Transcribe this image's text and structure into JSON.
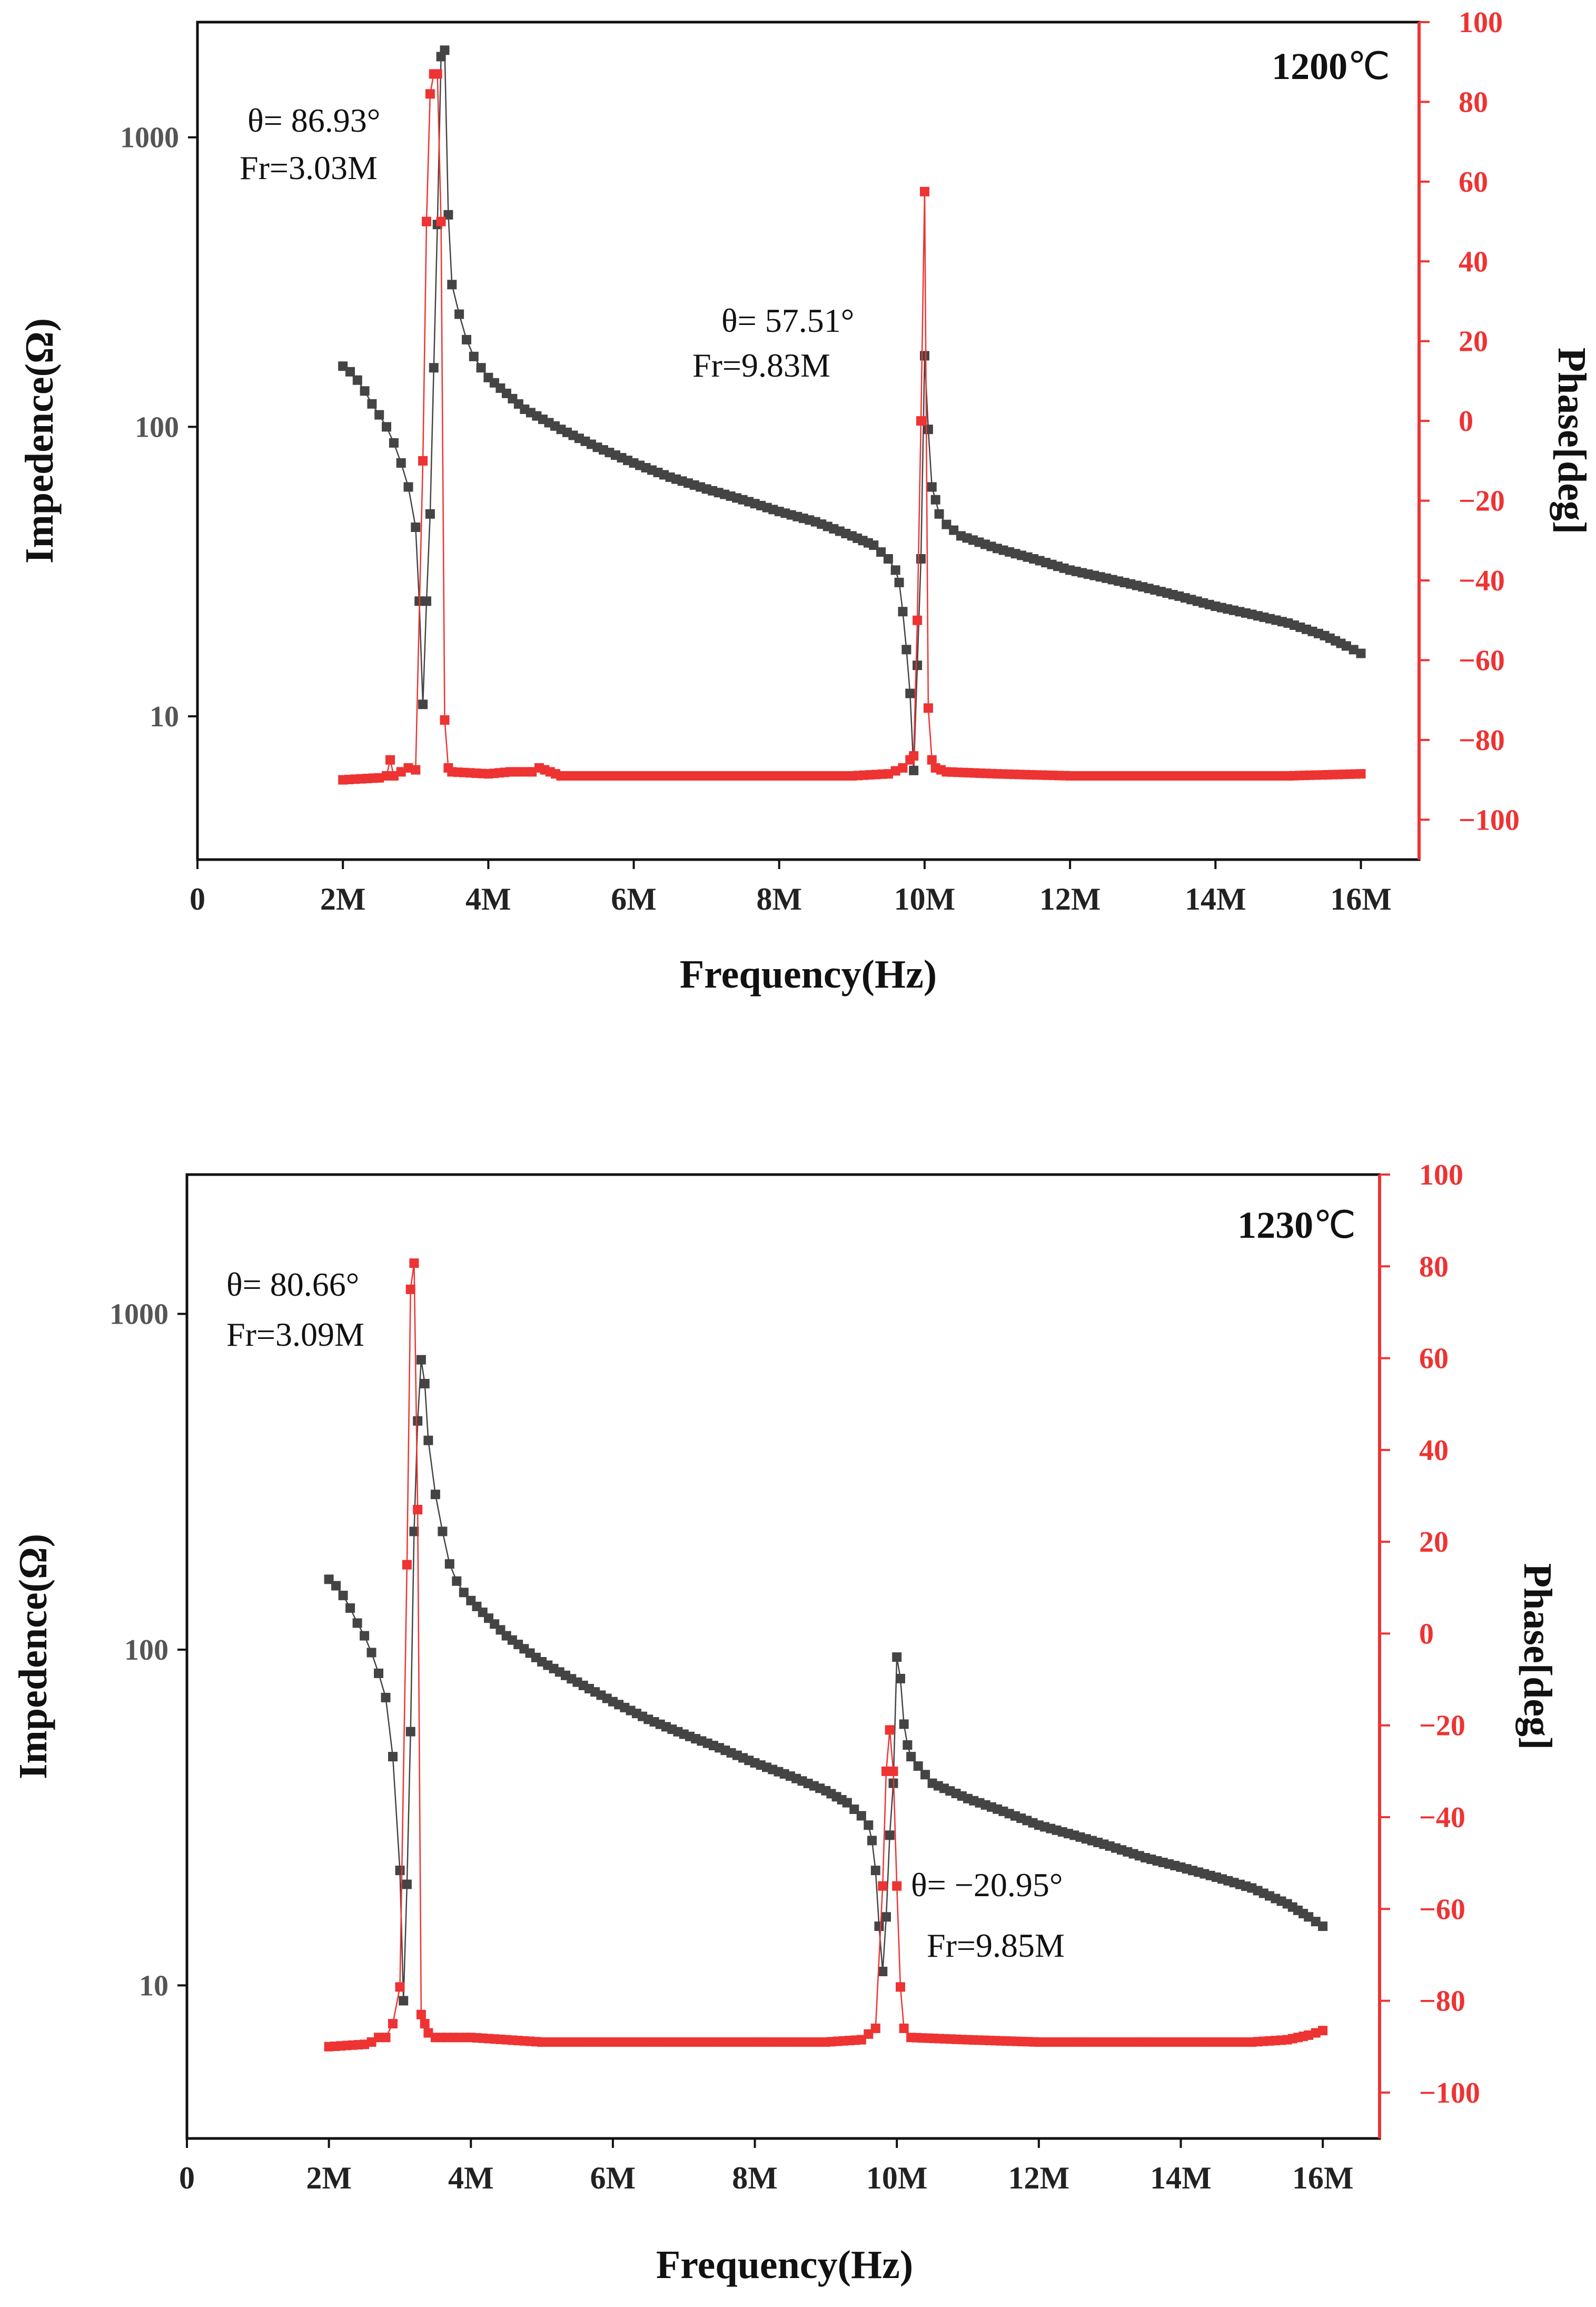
{
  "chart_data": [
    {
      "type": "scatter",
      "title": "1200℃",
      "title_number": "1200",
      "title_unit": "℃",
      "xlabel": "Frequency(Hz)",
      "ylabel_left": "Impedence(Ω)",
      "ylabel_right": "Phase[deg]",
      "y_left_scale": "log",
      "y_left_lim": [
        3.2,
        2500
      ],
      "y_left_ticks": [
        10,
        100,
        1000
      ],
      "y_left_tick_labels": [
        "10",
        "100",
        "1000"
      ],
      "y_right_lim": [
        -110,
        100
      ],
      "y_right_ticks": [
        -100,
        -80,
        -60,
        -40,
        -20,
        0,
        20,
        40,
        60,
        80,
        100
      ],
      "y_right_tick_labels": [
        "−100",
        "−80",
        "−60",
        "−40",
        "−20",
        "0",
        "20",
        "40",
        "60",
        "80",
        "100"
      ],
      "x_lim": [
        0,
        16.8
      ],
      "x_ticks": [
        0,
        2,
        4,
        6,
        8,
        10,
        12,
        14,
        16
      ],
      "x_tick_labels": [
        "0",
        "2M",
        "4M",
        "6M",
        "8M",
        "10M",
        "12M",
        "14M",
        "16M"
      ],
      "x_unit": "MHz",
      "series": [
        {
          "name": "Impedance",
          "axis": "left",
          "color": "#444444",
          "points": [
            [
              2.0,
              162
            ],
            [
              2.1,
              155
            ],
            [
              2.2,
              145
            ],
            [
              2.3,
              133
            ],
            [
              2.4,
              120
            ],
            [
              2.5,
              110
            ],
            [
              2.6,
              100
            ],
            [
              2.7,
              88
            ],
            [
              2.8,
              75
            ],
            [
              2.9,
              62
            ],
            [
              3.0,
              45
            ],
            [
              3.05,
              25
            ],
            [
              3.1,
              11
            ],
            [
              3.15,
              25
            ],
            [
              3.2,
              50
            ],
            [
              3.25,
              160
            ],
            [
              3.3,
              500
            ],
            [
              3.35,
              1900
            ],
            [
              3.4,
              2000
            ],
            [
              3.45,
              540
            ],
            [
              3.5,
              310
            ],
            [
              3.6,
              245
            ],
            [
              3.7,
              200
            ],
            [
              3.8,
              175
            ],
            [
              3.9,
              160
            ],
            [
              4.0,
              148
            ],
            [
              4.5,
              115
            ],
            [
              5,
              98
            ],
            [
              5.5,
              85
            ],
            [
              6,
              75
            ],
            [
              6.5,
              67
            ],
            [
              7,
              61
            ],
            [
              7.5,
              56
            ],
            [
              8,
              51
            ],
            [
              8.5,
              47
            ],
            [
              9,
              42
            ],
            [
              9.3,
              39
            ],
            [
              9.5,
              35
            ],
            [
              9.6,
              32
            ],
            [
              9.65,
              29
            ],
            [
              9.7,
              23
            ],
            [
              9.75,
              17
            ],
            [
              9.8,
              12
            ],
            [
              9.85,
              6.5
            ],
            [
              9.9,
              15
            ],
            [
              9.95,
              35
            ],
            [
              10.0,
              176
            ],
            [
              10.05,
              98
            ],
            [
              10.1,
              62
            ],
            [
              10.15,
              56
            ],
            [
              10.2,
              50
            ],
            [
              10.3,
              46
            ],
            [
              10.5,
              42
            ],
            [
              11,
              38
            ],
            [
              11.5,
              35
            ],
            [
              12,
              32
            ],
            [
              12.5,
              30
            ],
            [
              13,
              28
            ],
            [
              13.5,
              26
            ],
            [
              14,
              24
            ],
            [
              14.5,
              22.5
            ],
            [
              15,
              21
            ],
            [
              15.5,
              19
            ],
            [
              15.8,
              17.5
            ],
            [
              16.0,
              16.5
            ]
          ]
        },
        {
          "name": "Phase",
          "axis": "right",
          "color": "#ee3333",
          "points": [
            [
              2.0,
              -90
            ],
            [
              2.5,
              -89.5
            ],
            [
              2.6,
              -89
            ],
            [
              2.65,
              -85
            ],
            [
              2.7,
              -89
            ],
            [
              2.8,
              -88
            ],
            [
              2.9,
              -87
            ],
            [
              3.0,
              -87.5
            ],
            [
              3.1,
              -10
            ],
            [
              3.15,
              50
            ],
            [
              3.2,
              82
            ],
            [
              3.25,
              87
            ],
            [
              3.3,
              87
            ],
            [
              3.35,
              50
            ],
            [
              3.4,
              -75
            ],
            [
              3.45,
              -87
            ],
            [
              3.5,
              -88
            ],
            [
              4,
              -88.5
            ],
            [
              4.3,
              -88
            ],
            [
              4.6,
              -88
            ],
            [
              4.7,
              -87
            ],
            [
              5,
              -89
            ],
            [
              6,
              -89
            ],
            [
              7,
              -89
            ],
            [
              8,
              -89
            ],
            [
              9,
              -89
            ],
            [
              9.5,
              -88.5
            ],
            [
              9.7,
              -87
            ],
            [
              9.8,
              -85
            ],
            [
              9.85,
              -84
            ],
            [
              9.9,
              -50
            ],
            [
              9.95,
              0
            ],
            [
              10.0,
              57.5
            ],
            [
              10.05,
              -72
            ],
            [
              10.1,
              -85
            ],
            [
              10.15,
              -87
            ],
            [
              10.3,
              -88
            ],
            [
              11,
              -88.5
            ],
            [
              12,
              -89
            ],
            [
              13,
              -89
            ],
            [
              14,
              -89
            ],
            [
              15,
              -89
            ],
            [
              16,
              -88.5
            ]
          ]
        }
      ],
      "annotations": [
        {
          "theta": "θ= 86.93°",
          "fr": "Fr=3.03M"
        },
        {
          "theta": "θ= 57.51°",
          "fr": "Fr=9.83M"
        }
      ]
    },
    {
      "type": "scatter",
      "title": "1230℃",
      "title_number": "1230",
      "title_unit": "℃",
      "xlabel": "Frequency(Hz)",
      "ylabel_left": "Impedence(Ω)",
      "ylabel_right": "Phase[deg]",
      "y_left_scale": "log",
      "y_left_lim": [
        3.5,
        2600
      ],
      "y_left_ticks": [
        10,
        100,
        1000
      ],
      "y_left_tick_labels": [
        "10",
        "100",
        "1000"
      ],
      "y_right_lim": [
        -110,
        100
      ],
      "y_right_ticks": [
        -100,
        -80,
        -60,
        -40,
        -20,
        0,
        20,
        40,
        60,
        80,
        100
      ],
      "y_right_tick_labels": [
        "−100",
        "−80",
        "−60",
        "−40",
        "−20",
        "0",
        "20",
        "40",
        "60",
        "80",
        "100"
      ],
      "x_lim": [
        0,
        16.8
      ],
      "x_ticks": [
        0,
        2,
        4,
        6,
        8,
        10,
        12,
        14,
        16
      ],
      "x_tick_labels": [
        "0",
        "2M",
        "4M",
        "6M",
        "8M",
        "10M",
        "12M",
        "14M",
        "16M"
      ],
      "x_unit": "MHz",
      "series": [
        {
          "name": "Impedance",
          "axis": "left",
          "color": "#444444",
          "points": [
            [
              2.0,
              162
            ],
            [
              2.1,
              155
            ],
            [
              2.2,
              145
            ],
            [
              2.3,
              133
            ],
            [
              2.4,
              120
            ],
            [
              2.5,
              110
            ],
            [
              2.6,
              98
            ],
            [
              2.7,
              85
            ],
            [
              2.8,
              72
            ],
            [
              2.9,
              48
            ],
            [
              3.0,
              22
            ],
            [
              3.05,
              9
            ],
            [
              3.1,
              20
            ],
            [
              3.15,
              57
            ],
            [
              3.2,
              225
            ],
            [
              3.25,
              480
            ],
            [
              3.3,
              730
            ],
            [
              3.35,
              620
            ],
            [
              3.4,
              420
            ],
            [
              3.5,
              290
            ],
            [
              3.6,
              225
            ],
            [
              3.7,
              180
            ],
            [
              3.8,
              160
            ],
            [
              3.9,
              148
            ],
            [
              4,
              140
            ],
            [
              4.5,
              110
            ],
            [
              5,
              92
            ],
            [
              5.5,
              80
            ],
            [
              6,
              70
            ],
            [
              6.5,
              62
            ],
            [
              7,
              56
            ],
            [
              7.5,
              51
            ],
            [
              8,
              46
            ],
            [
              8.5,
              42
            ],
            [
              9,
              38
            ],
            [
              9.3,
              35
            ],
            [
              9.5,
              32
            ],
            [
              9.6,
              30
            ],
            [
              9.65,
              27
            ],
            [
              9.7,
              22
            ],
            [
              9.75,
              15
            ],
            [
              9.8,
              11
            ],
            [
              9.85,
              16
            ],
            [
              9.9,
              28
            ],
            [
              9.95,
              40
            ],
            [
              10.0,
              95
            ],
            [
              10.05,
              82
            ],
            [
              10.1,
              60
            ],
            [
              10.15,
              52
            ],
            [
              10.2,
              48
            ],
            [
              10.3,
              45
            ],
            [
              10.5,
              40
            ],
            [
              11,
              36
            ],
            [
              11.5,
              33
            ],
            [
              12,
              30
            ],
            [
              12.5,
              28
            ],
            [
              13,
              26
            ],
            [
              13.5,
              24
            ],
            [
              14,
              22.5
            ],
            [
              14.5,
              21
            ],
            [
              15,
              19.5
            ],
            [
              15.5,
              17.5
            ],
            [
              15.8,
              16
            ],
            [
              16.0,
              15
            ]
          ]
        },
        {
          "name": "Phase",
          "axis": "right",
          "color": "#ee3333",
          "points": [
            [
              2.0,
              -90
            ],
            [
              2.5,
              -89.5
            ],
            [
              2.6,
              -89
            ],
            [
              2.7,
              -88
            ],
            [
              2.8,
              -88
            ],
            [
              2.9,
              -85
            ],
            [
              3.0,
              -77
            ],
            [
              3.1,
              15
            ],
            [
              3.15,
              75
            ],
            [
              3.2,
              80.7
            ],
            [
              3.25,
              27
            ],
            [
              3.3,
              -83
            ],
            [
              3.35,
              -85
            ],
            [
              3.4,
              -87
            ],
            [
              3.5,
              -88
            ],
            [
              4,
              -88
            ],
            [
              4.5,
              -88.5
            ],
            [
              5,
              -89
            ],
            [
              6,
              -89
            ],
            [
              7,
              -89
            ],
            [
              8,
              -89
            ],
            [
              9,
              -89
            ],
            [
              9.5,
              -88.5
            ],
            [
              9.7,
              -86
            ],
            [
              9.8,
              -55
            ],
            [
              9.85,
              -30
            ],
            [
              9.9,
              -21
            ],
            [
              9.95,
              -30
            ],
            [
              10.0,
              -55
            ],
            [
              10.05,
              -77
            ],
            [
              10.1,
              -86
            ],
            [
              10.2,
              -88
            ],
            [
              11,
              -88.5
            ],
            [
              12,
              -89
            ],
            [
              13,
              -89
            ],
            [
              14,
              -89
            ],
            [
              15,
              -89
            ],
            [
              15.5,
              -88.5
            ],
            [
              15.8,
              -87.5
            ],
            [
              16.0,
              -86.5
            ]
          ]
        }
      ],
      "annotations": [
        {
          "theta": "θ= 80.66°",
          "fr": "Fr=3.09M"
        },
        {
          "theta": "θ= −20.95°",
          "fr": "Fr=9.85M"
        }
      ]
    }
  ]
}
